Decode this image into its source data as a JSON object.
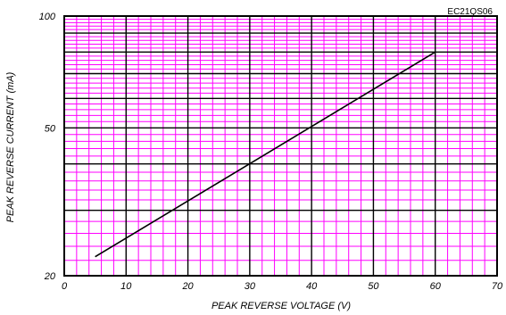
{
  "chart_data": {
    "type": "line",
    "part_number": "EC21QS06",
    "xlabel": "PEAK REVERSE VOLTAGE (V)",
    "ylabel": "PEAK REVERSE CURRENT (mA)",
    "xlim": [
      0,
      70
    ],
    "ylim": [
      20,
      100
    ],
    "yscale": "log",
    "grid": true,
    "x_ticks": [
      0,
      10,
      20,
      30,
      40,
      50,
      60,
      70
    ],
    "y_ticks": [
      20,
      50,
      100
    ],
    "colors": {
      "minor_grid": "#ff00ff",
      "major_grid": "#000000",
      "series": "#000000"
    },
    "series": [
      {
        "x": [
          5,
          60
        ],
        "y": [
          22.5,
          80
        ]
      }
    ]
  }
}
